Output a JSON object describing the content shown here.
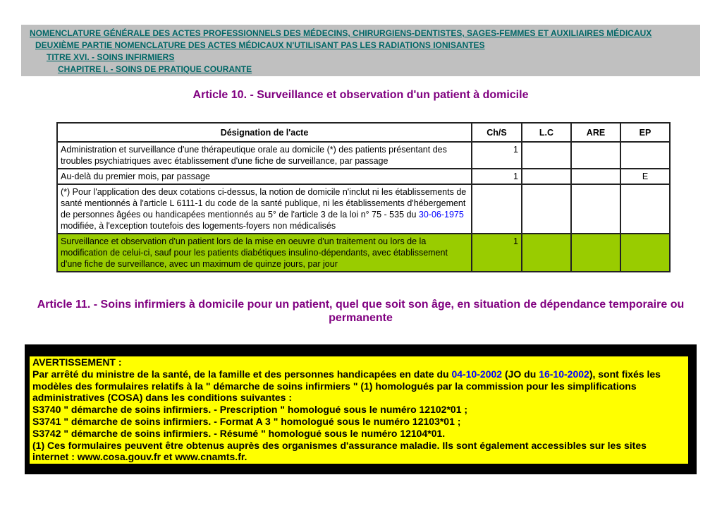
{
  "breadcrumbs": [
    "NOMENCLATURE GÉNÉRALE DES ACTES PROFESSIONNELS DES MÉDECINS, CHIRURGIENS-DENTISTES, SAGES-FEMMES ET AUXILIAIRES MÉDICAUX",
    "DEUXIÈME PARTIE NOMENCLATURE DES ACTES MÉDICAUX N'UTILISANT PAS LES RADIATIONS IONISANTES",
    "TITRE XVI. - SOINS INFIRMIERS",
    "CHAPITRE I. - SOINS DE PRATIQUE COURANTE"
  ],
  "article10": {
    "title": "Article 10. - Surveillance et observation d'un patient à domicile"
  },
  "table": {
    "headers": [
      "Désignation de l'acte",
      "Ch/S",
      "L.C",
      "ARE",
      "EP"
    ],
    "rows": [
      {
        "designation": "Administration et surveillance d'une thérapeutique orale au domicile (*) des patients présentant des troubles psychiatriques avec établissement d'une fiche de surveillance, par passage",
        "chs": "1",
        "lc": "",
        "are": "",
        "ep": ""
      },
      {
        "designation": "Au-delà du premier mois, par passage",
        "chs": "1",
        "lc": "",
        "are": "",
        "ep": "E"
      },
      {
        "designation_pre": "(*) Pour l'application des deux cotations ci-dessus, la notion de domicile n'inclut ni les établissements de santé mentionnés à l'article L 6111-1 du code de la santé publique, ni les établissements d'hébergement de personnes âgées ou handicapées mentionnés au 5° de l'article 3 de la loi n° 75 - 535 du ",
        "date_link": "30-06-1975",
        "designation_post": " modifiée, à l'exception toutefois des logements-foyers non médicalisés",
        "chs": "",
        "lc": "",
        "are": "",
        "ep": ""
      },
      {
        "designation": "Surveillance et observation d'un patient lors de la mise en oeuvre d'un traitement ou lors de la modification de celui-ci, sauf pour les patients diabétiques insulino-dépendants, avec établissement d'une fiche de surveillance, avec un maximum de quinze jours, par jour",
        "chs": "1",
        "lc": "",
        "are": "",
        "ep": ""
      }
    ]
  },
  "article11": {
    "title": "Article 11. - Soins infirmiers à domicile pour un patient, quel que soit son âge, en situation de dépendance temporaire ou permanente"
  },
  "warning": {
    "heading": "AVERTISSEMENT :",
    "p1_a": "Par arrêté du ministre de la santé, de la famille et des personnes handicapées en date du ",
    "date1": "04-10-2002",
    "p1_b": " (JO du ",
    "date2": "16-10-2002",
    "p1_c": "), sont fixés les modèles des formulaires relatifs à la \" démarche de soins infirmiers \" (1) homologués par la commission pour les simplifications administratives (COSA) dans les conditions suivantes :",
    "l1": "S3740 \" démarche de soins infirmiers. - Prescription \" homologué sous le numéro 12102*01 ;",
    "l2": "S3741 \" démarche de soins infirmiers. - Format A 3 \" homologué sous le numéro 12103*01 ;",
    "l3": "S3742 \" démarche de soins infirmiers. - Résumé \" homologué sous le numéro 12104*01.",
    "l4": "(1) Ces formulaires peuvent être obtenus auprès des organismes d'assurance maladie. Ils sont également accessibles sur les sites internet : www.cosa.gouv.fr et www.cnamts.fr."
  },
  "colors": {
    "breadcrumb_bg": "#c0c0c0",
    "breadcrumb_link": "#006666",
    "article_title": "#800080",
    "highlight_row": "#99cc00",
    "warning_bg": "#ffff00"
  }
}
